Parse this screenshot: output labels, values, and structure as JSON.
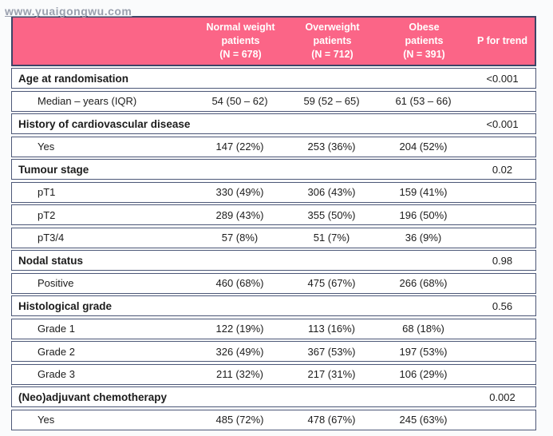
{
  "watermark": "www.yuaigongwu.com",
  "colors": {
    "header_bg": "#fb6587",
    "header_text": "#ffffff",
    "border": "#4d5878",
    "outer_border": "#3c4466",
    "page_bg": "#fafbfc",
    "row_bg": "#ffffff",
    "text": "#1c1c1c",
    "watermark_text": "#9aa0ae"
  },
  "table": {
    "headers": {
      "label_column": "",
      "col_normal": "Normal weight\npatients\n(N = 678)",
      "col_overweight": "Overweight\npatients\n(N = 712)",
      "col_obese": "Obese\npatients\n(N = 391)",
      "col_p": "P for trend"
    },
    "rows": [
      {
        "type": "section",
        "label": "Age at randomisation",
        "c1": "",
        "c2": "",
        "c3": "",
        "p": "<0.001"
      },
      {
        "type": "data",
        "label": "Median – years (IQR)",
        "c1": "54 (50 – 62)",
        "c2": "59 (52 – 65)",
        "c3": "61 (53 – 66)",
        "p": ""
      },
      {
        "type": "section",
        "label": "History of cardiovascular disease",
        "c1": "",
        "c2": "",
        "c3": "",
        "p": "<0.001"
      },
      {
        "type": "data",
        "label": "Yes",
        "c1": "147 (22%)",
        "c2": "253 (36%)",
        "c3": "204 (52%)",
        "p": ""
      },
      {
        "type": "section",
        "label": "Tumour stage",
        "c1": "",
        "c2": "",
        "c3": "",
        "p": "0.02"
      },
      {
        "type": "data",
        "label": "pT1",
        "c1": "330 (49%)",
        "c2": "306 (43%)",
        "c3": "159 (41%)",
        "p": ""
      },
      {
        "type": "data",
        "label": "pT2",
        "c1": "289 (43%)",
        "c2": "355 (50%)",
        "c3": "196 (50%)",
        "p": ""
      },
      {
        "type": "data",
        "label": "pT3/4",
        "c1": "57 (8%)",
        "c2": "51 (7%)",
        "c3": "36 (9%)",
        "p": ""
      },
      {
        "type": "section",
        "label": "Nodal status",
        "c1": "",
        "c2": "",
        "c3": "",
        "p": "0.98"
      },
      {
        "type": "data",
        "label": "Positive",
        "c1": "460 (68%)",
        "c2": "475 (67%)",
        "c3": "266 (68%)",
        "p": ""
      },
      {
        "type": "section",
        "label": "Histological grade",
        "c1": "",
        "c2": "",
        "c3": "",
        "p": "0.56"
      },
      {
        "type": "data",
        "label": "Grade 1",
        "c1": "122 (19%)",
        "c2": "113 (16%)",
        "c3": "68 (18%)",
        "p": ""
      },
      {
        "type": "data",
        "label": "Grade 2",
        "c1": "326 (49%)",
        "c2": "367 (53%)",
        "c3": "197 (53%)",
        "p": ""
      },
      {
        "type": "data",
        "label": "Grade 3",
        "c1": "211 (32%)",
        "c2": "217 (31%)",
        "c3": "106 (29%)",
        "p": ""
      },
      {
        "type": "section",
        "label": "(Neo)adjuvant chemotherapy",
        "c1": "",
        "c2": "",
        "c3": "",
        "p": "0.002"
      },
      {
        "type": "data",
        "label": "Yes",
        "c1": "485 (72%)",
        "c2": "478 (67%)",
        "c3": "245 (63%)",
        "p": ""
      }
    ]
  }
}
